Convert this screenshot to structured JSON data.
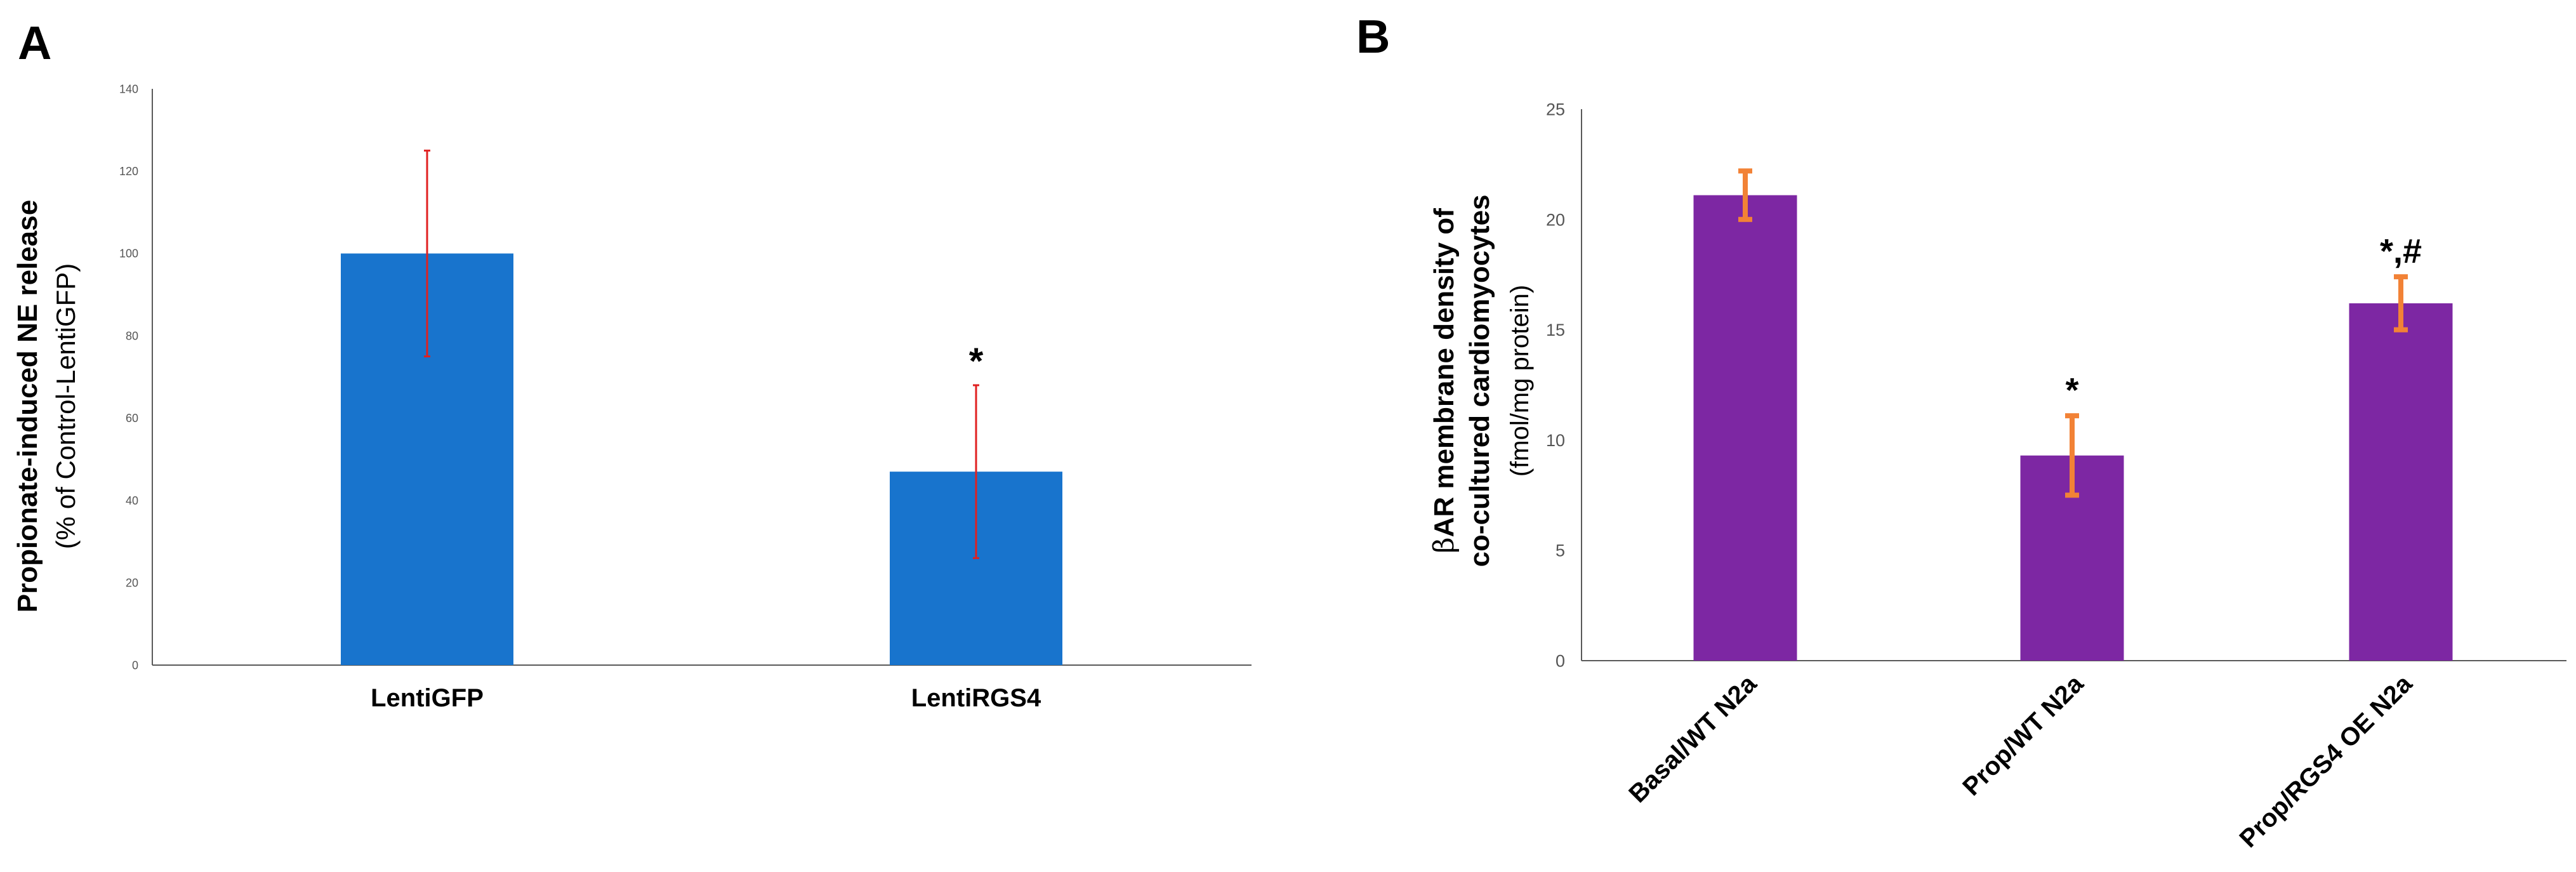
{
  "panels": {
    "a": {
      "letter": "A"
    },
    "b": {
      "letter": "B"
    }
  },
  "colors": {
    "panel_a_bar": "#1874CD",
    "panel_a_error": "#E02020",
    "panel_b_bar": "#7D27A3",
    "panel_b_error": "#F28236",
    "axis": "#595959",
    "tick_text": "#555555",
    "label_text": "#000000"
  },
  "chart_data": [
    {
      "id": "a",
      "type": "bar",
      "title": "",
      "ylabel": "Propionate-induced NE release",
      "ylabel_sub": "(% of Control-LentiGFP)",
      "xlabel": "",
      "categories": [
        "LentiGFP",
        "LentiRGS4"
      ],
      "values": [
        100,
        47
      ],
      "errors_upper": [
        25,
        21
      ],
      "errors_lower": [
        25,
        21
      ],
      "annotations": [
        "",
        "*"
      ],
      "ylim": [
        0,
        140
      ],
      "yticks": [
        0,
        20,
        40,
        60,
        80,
        100,
        120,
        140
      ],
      "grid": false,
      "legend": "none"
    },
    {
      "id": "b",
      "type": "bar",
      "title": "",
      "ylabel_prefix": "β",
      "ylabel": "AR membrane density of",
      "ylabel_line2": "co-cultured cardiomyocytes",
      "ylabel_sub": "(fmol/mg protein)",
      "xlabel": "",
      "categories": [
        "Basal/WT N2a",
        "Prop/WT N2a",
        "Prop/RGS4 OE N2a"
      ],
      "values": [
        21.1,
        9.3,
        16.2
      ],
      "errors_upper": [
        1.1,
        1.8,
        1.2
      ],
      "errors_lower": [
        1.1,
        1.8,
        1.2
      ],
      "annotations": [
        "",
        "*",
        "*,#"
      ],
      "ylim": [
        0,
        25
      ],
      "yticks": [
        0,
        5,
        10,
        15,
        20,
        25
      ],
      "grid": false,
      "legend": "none"
    }
  ]
}
